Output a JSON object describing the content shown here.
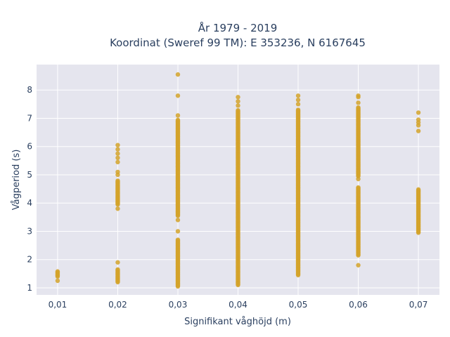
{
  "chart_data": {
    "type": "scatter",
    "title_lines": [
      "År 1979 - 2019",
      "Koordinat (Sweref 99 TM): E 353236, N 6167645"
    ],
    "xlabel": "Signifikant våghöjd (m)",
    "ylabel": "Vågperiod (s)",
    "x_ticks": [
      0.01,
      0.02,
      0.03,
      0.04,
      0.05,
      0.06,
      0.07
    ],
    "x_tick_labels": [
      "0,01",
      "0,02",
      "0,03",
      "0,04",
      "0,05",
      "0,06",
      "0,07"
    ],
    "y_ticks": [
      1,
      2,
      3,
      4,
      5,
      6,
      7,
      8
    ],
    "y_tick_labels": [
      "1",
      "2",
      "3",
      "4",
      "5",
      "6",
      "7",
      "8"
    ],
    "xlim": [
      0.0065,
      0.0735
    ],
    "ylim": [
      0.75,
      8.9
    ],
    "grid": true,
    "marker_color": "#d4a32a",
    "plot_bg": "#e5e5ee",
    "grid_color": "#ffffff",
    "series": [
      {
        "clusters": [
          {
            "x": 0.01,
            "ranges": [
              [
                1.4,
                1.58
              ]
            ],
            "points": [
              1.25
            ]
          },
          {
            "x": 0.02,
            "ranges": [
              [
                1.2,
                1.65
              ],
              [
                3.95,
                4.8
              ]
            ],
            "points": [
              1.9,
              3.8,
              5.0,
              5.1,
              5.45,
              5.6,
              5.75,
              5.9,
              6.05
            ]
          },
          {
            "x": 0.03,
            "ranges": [
              [
                1.05,
                2.7
              ],
              [
                3.55,
                6.95
              ]
            ],
            "points": [
              3.0,
              3.4,
              7.1,
              7.8,
              8.55
            ]
          },
          {
            "x": 0.04,
            "ranges": [
              [
                1.1,
                7.3
              ]
            ],
            "points": [
              7.45,
              7.6,
              7.75
            ]
          },
          {
            "x": 0.05,
            "ranges": [
              [
                1.45,
                7.3
              ]
            ],
            "points": [
              7.5,
              7.65,
              7.8
            ]
          },
          {
            "x": 0.06,
            "ranges": [
              [
                2.15,
                4.55
              ],
              [
                4.95,
                7.4
              ]
            ],
            "points": [
              1.8,
              4.85,
              5.1,
              7.55,
              7.75,
              7.8
            ]
          },
          {
            "x": 0.07,
            "ranges": [
              [
                2.95,
                4.5
              ]
            ],
            "points": [
              6.55,
              6.75,
              6.85,
              6.95,
              7.2
            ]
          }
        ]
      }
    ]
  }
}
